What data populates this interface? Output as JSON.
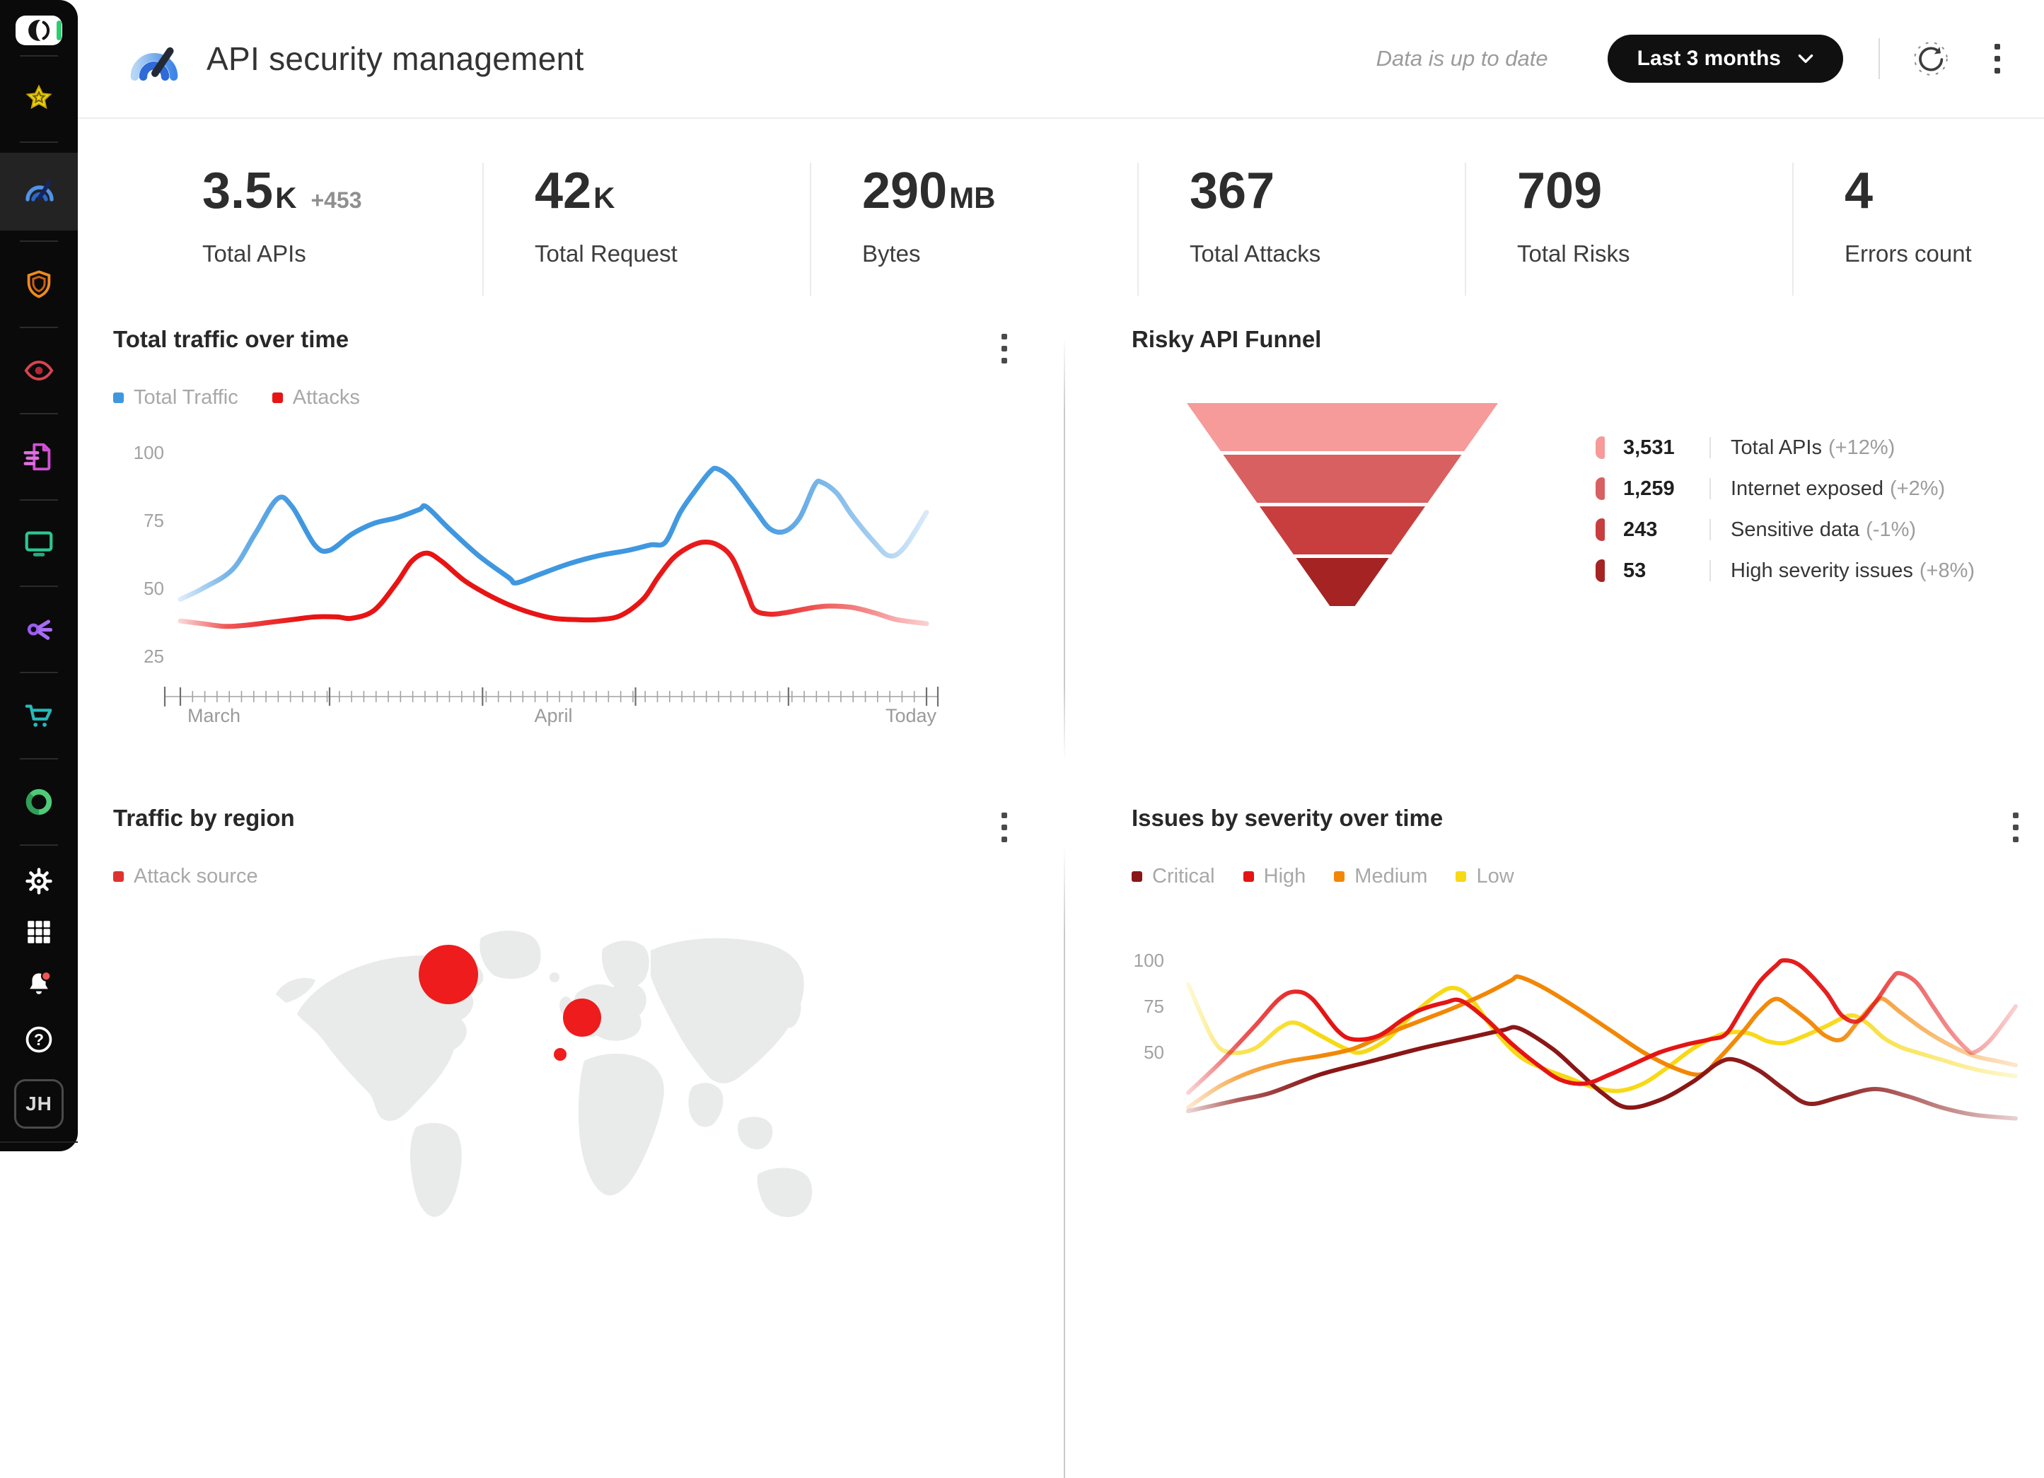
{
  "sidebar": {
    "avatar_initials": "JH",
    "accent_green": "#2ecc71",
    "items": [
      "logo",
      "favorites",
      "api-security",
      "shield",
      "observe",
      "data-transfer",
      "devices",
      "network-share",
      "marketplace",
      "rings",
      "settings",
      "apps",
      "notifications",
      "help",
      "account",
      "expand"
    ]
  },
  "header": {
    "title": "API security management",
    "status": "Data is up to date",
    "range_label": "Last 3 months"
  },
  "stats": [
    {
      "value": "3.5",
      "suffix": "K",
      "delta": "+453",
      "label": "Total APIs"
    },
    {
      "value": "42",
      "suffix": "K",
      "delta": "",
      "label": "Total Request"
    },
    {
      "value": "290",
      "suffix": "MB",
      "delta": "",
      "label": "Bytes"
    },
    {
      "value": "367",
      "suffix": "",
      "delta": "",
      "label": "Total Attacks"
    },
    {
      "value": "709",
      "suffix": "",
      "delta": "",
      "label": "Total Risks"
    },
    {
      "value": "4",
      "suffix": "",
      "delta": "",
      "label": "Errors count"
    }
  ],
  "chart_data": [
    {
      "id": "traffic",
      "type": "line",
      "title": "Total traffic over time",
      "y_ticks": [
        100,
        75,
        50,
        25
      ],
      "ylim": [
        0,
        100
      ],
      "x_labels": [
        "March",
        "April",
        "Today"
      ],
      "grid": false,
      "legend_position": "top-left",
      "series": [
        {
          "name": "Total Traffic",
          "color": "#3f97e0",
          "points": [
            [
              0,
              46
            ],
            [
              3,
              50
            ],
            [
              7,
              57
            ],
            [
              10,
              70
            ],
            [
              13,
              83
            ],
            [
              15,
              80
            ],
            [
              18,
              66
            ],
            [
              20,
              64
            ],
            [
              23,
              70
            ],
            [
              26,
              74
            ],
            [
              29,
              76
            ],
            [
              32,
              79
            ],
            [
              33,
              80
            ],
            [
              36,
              72
            ],
            [
              40,
              62
            ],
            [
              44,
              54
            ],
            [
              45,
              52
            ],
            [
              48,
              55
            ],
            [
              52,
              59
            ],
            [
              56,
              62
            ],
            [
              60,
              64
            ],
            [
              63,
              66
            ],
            [
              65,
              67
            ],
            [
              67,
              78
            ],
            [
              69,
              86
            ],
            [
              71,
              93
            ],
            [
              72,
              94
            ],
            [
              74,
              90
            ],
            [
              77,
              79
            ],
            [
              79,
              72
            ],
            [
              81,
              71
            ],
            [
              83,
              76
            ],
            [
              85,
              88
            ],
            [
              86,
              89
            ],
            [
              88,
              85
            ],
            [
              90,
              77
            ],
            [
              93,
              67
            ],
            [
              95,
              62
            ],
            [
              97,
              65
            ],
            [
              100,
              78
            ]
          ]
        },
        {
          "name": "Attacks",
          "color": "#e81414",
          "points": [
            [
              0,
              38
            ],
            [
              3,
              37
            ],
            [
              6,
              36
            ],
            [
              9,
              36.5
            ],
            [
              12,
              37.5
            ],
            [
              15,
              38.5
            ],
            [
              18,
              39.5
            ],
            [
              21,
              39.5
            ],
            [
              23,
              39
            ],
            [
              26,
              42
            ],
            [
              29,
              52
            ],
            [
              31,
              60
            ],
            [
              33,
              63
            ],
            [
              35,
              60
            ],
            [
              38,
              53
            ],
            [
              41,
              48
            ],
            [
              44,
              44
            ],
            [
              47,
              41
            ],
            [
              50,
              39
            ],
            [
              53,
              38.5
            ],
            [
              56,
              38.5
            ],
            [
              59,
              40
            ],
            [
              62,
              46
            ],
            [
              64,
              54
            ],
            [
              66,
              61
            ],
            [
              68,
              65
            ],
            [
              70,
              67
            ],
            [
              72,
              66
            ],
            [
              74,
              61
            ],
            [
              76,
              48
            ],
            [
              77,
              42
            ],
            [
              79,
              40.5
            ],
            [
              81,
              41
            ],
            [
              83,
              42
            ],
            [
              85,
              43
            ],
            [
              87,
              43.5
            ],
            [
              90,
              43
            ],
            [
              93,
              41
            ],
            [
              96,
              38.5
            ],
            [
              100,
              37
            ]
          ]
        }
      ]
    },
    {
      "id": "funnel",
      "type": "funnel",
      "title": "Risky API Funnel",
      "stages": [
        {
          "value": "3,531",
          "label": "Total APIs",
          "delta": "(+12%)",
          "color": "#f69a9a"
        },
        {
          "value": "1,259",
          "label": "Internet exposed",
          "delta": "(+2%)",
          "color": "#d96060"
        },
        {
          "value": "243",
          "label": "Sensitive data",
          "delta": "(-1%)",
          "color": "#c83e3e"
        },
        {
          "value": "53",
          "label": "High severity issues",
          "delta": "(+8%)",
          "color": "#a52323"
        }
      ]
    },
    {
      "id": "region",
      "type": "map-bubbles",
      "title": "Traffic by region",
      "legend": [
        {
          "name": "Attack source",
          "color": "#e03131"
        }
      ],
      "bubble_color": "#ee1c1c",
      "bubbles": [
        {
          "x_pct": 33,
          "y_pct": 20,
          "r": 42
        },
        {
          "x_pct": 57.5,
          "y_pct": 33,
          "r": 27
        },
        {
          "x_pct": 53.5,
          "y_pct": 44,
          "r": 9
        }
      ]
    },
    {
      "id": "issues",
      "type": "line",
      "title": "Issues by severity over time",
      "y_ticks": [
        100,
        75,
        50
      ],
      "ylim": [
        0,
        100
      ],
      "grid": false,
      "draw_order": [
        3,
        2,
        0,
        1
      ],
      "series": [
        {
          "name": "Critical",
          "color": "#8a1616",
          "points": [
            [
              0,
              18
            ],
            [
              6,
              24
            ],
            [
              10,
              28
            ],
            [
              16,
              38
            ],
            [
              22,
              45
            ],
            [
              28,
              52
            ],
            [
              34,
              58
            ],
            [
              38,
              62
            ],
            [
              40,
              63
            ],
            [
              44,
              52
            ],
            [
              47,
              40
            ],
            [
              50,
              28
            ],
            [
              53,
              20
            ],
            [
              57,
              24
            ],
            [
              61,
              34
            ],
            [
              64,
              44
            ],
            [
              66,
              46
            ],
            [
              69,
              40
            ],
            [
              72,
              30
            ],
            [
              75,
              22
            ],
            [
              79,
              26
            ],
            [
              83,
              30
            ],
            [
              87,
              26
            ],
            [
              91,
              20
            ],
            [
              95,
              16
            ],
            [
              100,
              14
            ]
          ]
        },
        {
          "name": "High",
          "color": "#e51414",
          "points": [
            [
              0,
              28
            ],
            [
              4,
              45
            ],
            [
              8,
              64
            ],
            [
              11,
              79
            ],
            [
              13,
              83
            ],
            [
              15,
              79
            ],
            [
              18,
              62
            ],
            [
              20,
              57
            ],
            [
              23,
              59
            ],
            [
              26,
              68
            ],
            [
              28,
              73
            ],
            [
              31,
              77
            ],
            [
              33,
              78
            ],
            [
              36,
              68
            ],
            [
              39,
              55
            ],
            [
              42,
              44
            ],
            [
              45,
              35
            ],
            [
              48,
              33
            ],
            [
              51,
              38
            ],
            [
              54,
              44
            ],
            [
              57,
              50
            ],
            [
              60,
              54
            ],
            [
              63,
              57
            ],
            [
              65,
              60
            ],
            [
              67,
              74
            ],
            [
              69,
              88
            ],
            [
              71,
              97
            ],
            [
              72,
              100
            ],
            [
              74,
              97
            ],
            [
              77,
              83
            ],
            [
              79,
              70
            ],
            [
              81,
              67
            ],
            [
              83,
              77
            ],
            [
              85,
              90
            ],
            [
              86,
              93
            ],
            [
              88,
              88
            ],
            [
              90,
              75
            ],
            [
              92,
              62
            ],
            [
              94,
              52
            ],
            [
              95,
              50
            ],
            [
              97,
              57
            ],
            [
              100,
              75
            ]
          ]
        },
        {
          "name": "Medium",
          "color": "#f28705",
          "points": [
            [
              0,
              20
            ],
            [
              4,
              32
            ],
            [
              8,
              40
            ],
            [
              12,
              45
            ],
            [
              16,
              48
            ],
            [
              20,
              52
            ],
            [
              24,
              60
            ],
            [
              28,
              67
            ],
            [
              32,
              74
            ],
            [
              36,
              82
            ],
            [
              39,
              89
            ],
            [
              40,
              91
            ],
            [
              43,
              85
            ],
            [
              47,
              74
            ],
            [
              51,
              62
            ],
            [
              55,
              50
            ],
            [
              59,
              41
            ],
            [
              62,
              38
            ],
            [
              64,
              46
            ],
            [
              67,
              61
            ],
            [
              69,
              72
            ],
            [
              71,
              79
            ],
            [
              73,
              74
            ],
            [
              75,
              67
            ],
            [
              77,
              59
            ],
            [
              79,
              57
            ],
            [
              81,
              67
            ],
            [
              83,
              77
            ],
            [
              84,
              79
            ],
            [
              86,
              72
            ],
            [
              89,
              62
            ],
            [
              92,
              54
            ],
            [
              95,
              48
            ],
            [
              98,
              45
            ],
            [
              100,
              43
            ]
          ]
        },
        {
          "name": "Low",
          "color": "#f7d915",
          "points": [
            [
              0,
              87
            ],
            [
              3,
              57
            ],
            [
              5,
              50
            ],
            [
              8,
              52
            ],
            [
              11,
              63
            ],
            [
              13,
              66
            ],
            [
              16,
              59
            ],
            [
              19,
              52
            ],
            [
              21,
              50
            ],
            [
              24,
              57
            ],
            [
              27,
              70
            ],
            [
              30,
              81
            ],
            [
              32,
              85
            ],
            [
              34,
              80
            ],
            [
              37,
              62
            ],
            [
              40,
              48
            ],
            [
              43,
              41
            ],
            [
              46,
              36
            ],
            [
              49,
              31
            ],
            [
              52,
              29
            ],
            [
              55,
              33
            ],
            [
              58,
              42
            ],
            [
              61,
              52
            ],
            [
              64,
              59
            ],
            [
              66,
              61
            ],
            [
              68,
              60
            ],
            [
              70,
              56
            ],
            [
              72,
              55
            ],
            [
              74,
              58
            ],
            [
              77,
              64
            ],
            [
              80,
              70
            ],
            [
              82,
              66
            ],
            [
              84,
              58
            ],
            [
              86,
              53
            ],
            [
              88,
              50
            ],
            [
              91,
              46
            ],
            [
              94,
              42
            ],
            [
              97,
              39
            ],
            [
              100,
              37
            ]
          ]
        }
      ]
    }
  ]
}
